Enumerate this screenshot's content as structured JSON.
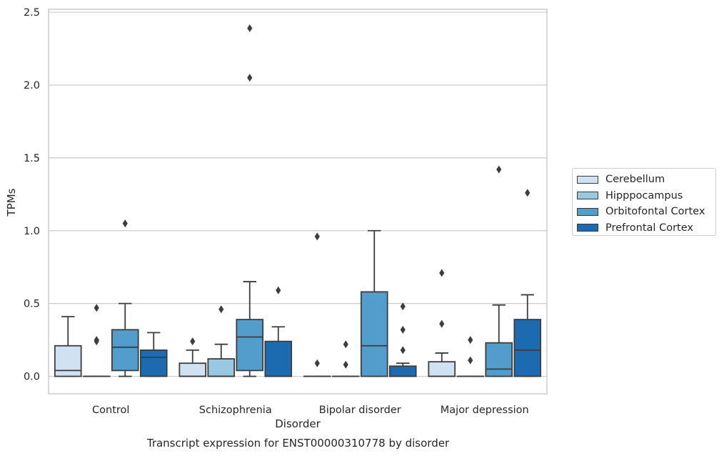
{
  "caption": "Transcript expression for ENST00000310778 by disorder",
  "chart_data": {
    "type": "box",
    "title": "",
    "xlabel": "Disorder",
    "ylabel": "TPMs",
    "ylim": [
      -0.12,
      2.52
    ],
    "yticks": [
      0.0,
      0.5,
      1.0,
      1.5,
      2.0,
      2.5
    ],
    "ytick_labels": [
      "0.0",
      "0.5",
      "1.0",
      "1.5",
      "2.0",
      "2.5"
    ],
    "grid": "horizontal",
    "legend_placement": "right",
    "categories": [
      "Control",
      "Schizophrenia",
      "Bipolar disorder",
      "Major depression"
    ],
    "series": [
      {
        "name": "Cerebellum",
        "color": "#d0e1f2",
        "boxes": [
          {
            "q1": 0.0,
            "median": 0.04,
            "q3": 0.21,
            "whislo": 0.0,
            "whishi": 0.41,
            "fliers": []
          },
          {
            "q1": 0.0,
            "median": 0.0,
            "q3": 0.09,
            "whislo": 0.0,
            "whishi": 0.18,
            "fliers": [
              0.24
            ]
          },
          {
            "q1": 0.0,
            "median": 0.0,
            "q3": 0.0,
            "whislo": 0.0,
            "whishi": 0.0,
            "fliers": [
              0.96,
              0.09
            ]
          },
          {
            "q1": 0.0,
            "median": 0.0,
            "q3": 0.1,
            "whislo": 0.0,
            "whishi": 0.16,
            "fliers": [
              0.71,
              0.36
            ]
          }
        ]
      },
      {
        "name": "Hipppocampus",
        "color": "#9ac8e0",
        "boxes": [
          {
            "q1": 0.0,
            "median": 0.0,
            "q3": 0.0,
            "whislo": 0.0,
            "whishi": 0.0,
            "fliers": [
              0.47,
              0.25,
              0.24
            ]
          },
          {
            "q1": 0.0,
            "median": 0.0,
            "q3": 0.12,
            "whislo": 0.0,
            "whishi": 0.22,
            "fliers": [
              0.46
            ]
          },
          {
            "q1": 0.0,
            "median": 0.0,
            "q3": 0.0,
            "whislo": 0.0,
            "whishi": 0.0,
            "fliers": [
              0.22,
              0.08
            ]
          },
          {
            "q1": 0.0,
            "median": 0.0,
            "q3": 0.0,
            "whislo": 0.0,
            "whishi": 0.0,
            "fliers": [
              0.25,
              0.11
            ]
          }
        ]
      },
      {
        "name": "Orbitofontal Cortex",
        "color": "#529dcc",
        "boxes": [
          {
            "q1": 0.04,
            "median": 0.2,
            "q3": 0.32,
            "whislo": 0.0,
            "whishi": 0.5,
            "fliers": [
              1.05
            ]
          },
          {
            "q1": 0.04,
            "median": 0.27,
            "q3": 0.39,
            "whislo": 0.0,
            "whishi": 0.65,
            "fliers": [
              2.39,
              2.05
            ]
          },
          {
            "q1": 0.0,
            "median": 0.21,
            "q3": 0.58,
            "whislo": 0.0,
            "whishi": 1.0,
            "fliers": []
          },
          {
            "q1": 0.0,
            "median": 0.05,
            "q3": 0.23,
            "whislo": 0.0,
            "whishi": 0.49,
            "fliers": [
              1.42
            ]
          }
        ]
      },
      {
        "name": "Prefrontal Cortex",
        "color": "#1c6aaf",
        "boxes": [
          {
            "q1": 0.0,
            "median": 0.13,
            "q3": 0.18,
            "whislo": 0.0,
            "whishi": 0.3,
            "fliers": []
          },
          {
            "q1": 0.0,
            "median": 0.0,
            "q3": 0.24,
            "whislo": 0.0,
            "whishi": 0.34,
            "fliers": [
              0.59
            ]
          },
          {
            "q1": 0.0,
            "median": 0.0,
            "q3": 0.07,
            "whislo": 0.0,
            "whishi": 0.09,
            "fliers": [
              0.48,
              0.32,
              0.18
            ]
          },
          {
            "q1": 0.0,
            "median": 0.18,
            "q3": 0.39,
            "whislo": 0.0,
            "whishi": 0.56,
            "fliers": [
              1.26
            ]
          }
        ]
      }
    ]
  }
}
